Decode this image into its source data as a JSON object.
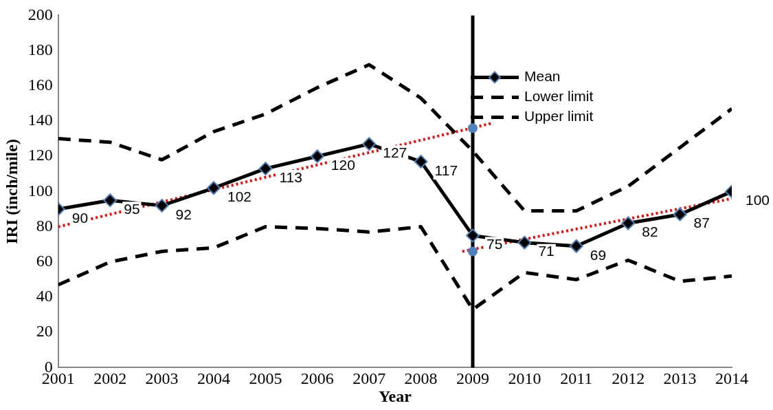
{
  "chart_data": {
    "type": "line",
    "xlabel": "Year",
    "ylabel": "IRI (inch/mile)",
    "x": [
      2001,
      2002,
      2003,
      2004,
      2005,
      2006,
      2007,
      2008,
      2009,
      2010,
      2011,
      2012,
      2013,
      2014
    ],
    "xlim": [
      2001,
      2014
    ],
    "xticks": [
      2001,
      2002,
      2003,
      2004,
      2005,
      2006,
      2007,
      2008,
      2009,
      2010,
      2011,
      2012,
      2013,
      2014
    ],
    "ylim": [
      0,
      200
    ],
    "yticks": [
      0,
      20,
      40,
      60,
      80,
      100,
      120,
      140,
      160,
      180,
      200
    ],
    "grid": false,
    "legend": "top right",
    "series": [
      {
        "name": "Mean",
        "color": "#000000",
        "marker": "diamond",
        "line_style": "solid",
        "values": [
          90,
          95,
          92,
          102,
          113,
          120,
          127,
          117,
          75,
          71,
          69,
          82,
          87,
          100
        ],
        "value_labels": [
          "90",
          "95",
          "92",
          "102",
          "113",
          "120",
          "127",
          "117",
          "75",
          "71",
          "69",
          "82",
          "87",
          "100"
        ]
      },
      {
        "name": "Lower limit",
        "color": "#000000",
        "marker": "none",
        "line_style": "dashed",
        "values": [
          47,
          60,
          66,
          68,
          80,
          79,
          77,
          80,
          33,
          54,
          50,
          61,
          49,
          52
        ]
      },
      {
        "name": "Upper limit",
        "color": "#000000",
        "marker": "none",
        "line_style": "dashed",
        "values": [
          130,
          128,
          118,
          134,
          144,
          159,
          172,
          153,
          123,
          89,
          89,
          103,
          125,
          147
        ]
      },
      {
        "type": "line",
        "color": "#ff0000",
        "marker": "none",
        "line_style": "dotted",
        "x": [
          2001,
          2009.4
        ],
        "values": [
          80,
          139
        ]
      },
      {
        "type": "line",
        "color": "#ff0000",
        "marker": "none",
        "line_style": "dotted",
        "x": [
          2008.8,
          2014
        ],
        "values": [
          66,
          96
        ]
      },
      {
        "type": "scatter",
        "color": "#4f81bd",
        "marker": "circle",
        "x": [
          2009,
          2009
        ],
        "values": [
          136,
          66
        ]
      }
    ],
    "ref_lines": [
      {
        "axis": "x",
        "value": 2009,
        "color": "#000000",
        "line_style": "solid"
      }
    ]
  }
}
